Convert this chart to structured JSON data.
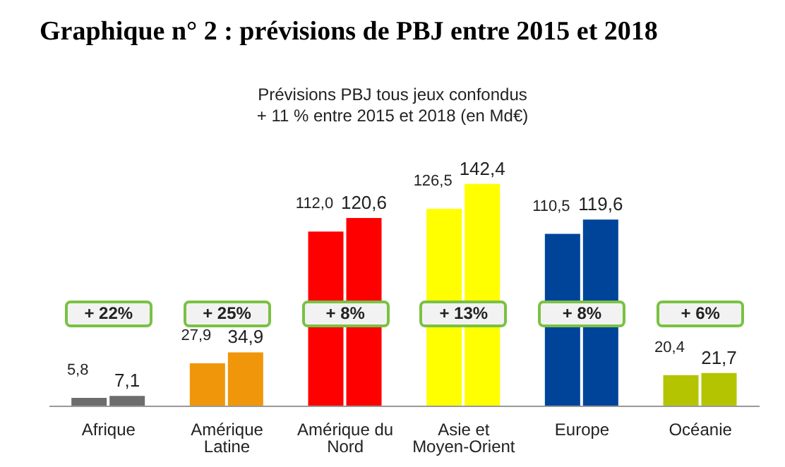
{
  "chart_data": {
    "type": "bar",
    "title": "Graphique n° 2 : prévisions de PBJ entre 2015 et 2018",
    "subtitle": "Prévisions PBJ tous jeux confondus\n+ 11 % entre 2015 et 2018 (en Md€)",
    "categories": [
      "Afrique",
      "Amérique Latine",
      "Amérique du Nord",
      "Asie et Moyen-Orient",
      "Europe",
      "Océanie"
    ],
    "series": [
      {
        "colors": [
          "#6d6d6d",
          "#f0960a",
          "#ff0000",
          "#ffff00",
          "#00449a",
          "#b5c400"
        ],
        "values": [
          5.8,
          27.9,
          112.0,
          126.5,
          110.5,
          20.4
        ],
        "value_labels": [
          "5,8",
          "27,9",
          "112,0",
          "126,5",
          "110,5",
          "20,4"
        ]
      },
      {
        "colors": [
          "#6d6d6d",
          "#f0960a",
          "#ff0000",
          "#ffff00",
          "#00449a",
          "#b5c400"
        ],
        "values": [
          7.1,
          34.9,
          120.6,
          142.4,
          119.6,
          21.7
        ],
        "value_labels": [
          "7,1",
          "34,9",
          "120,6",
          "142,4",
          "119,6",
          "21,7"
        ]
      }
    ],
    "annotations": [
      "+ 22%",
      "+ 25%",
      "+ 8%",
      "+ 13%",
      "+ 8%",
      "+ 6%"
    ],
    "grid": false,
    "legend": false
  }
}
